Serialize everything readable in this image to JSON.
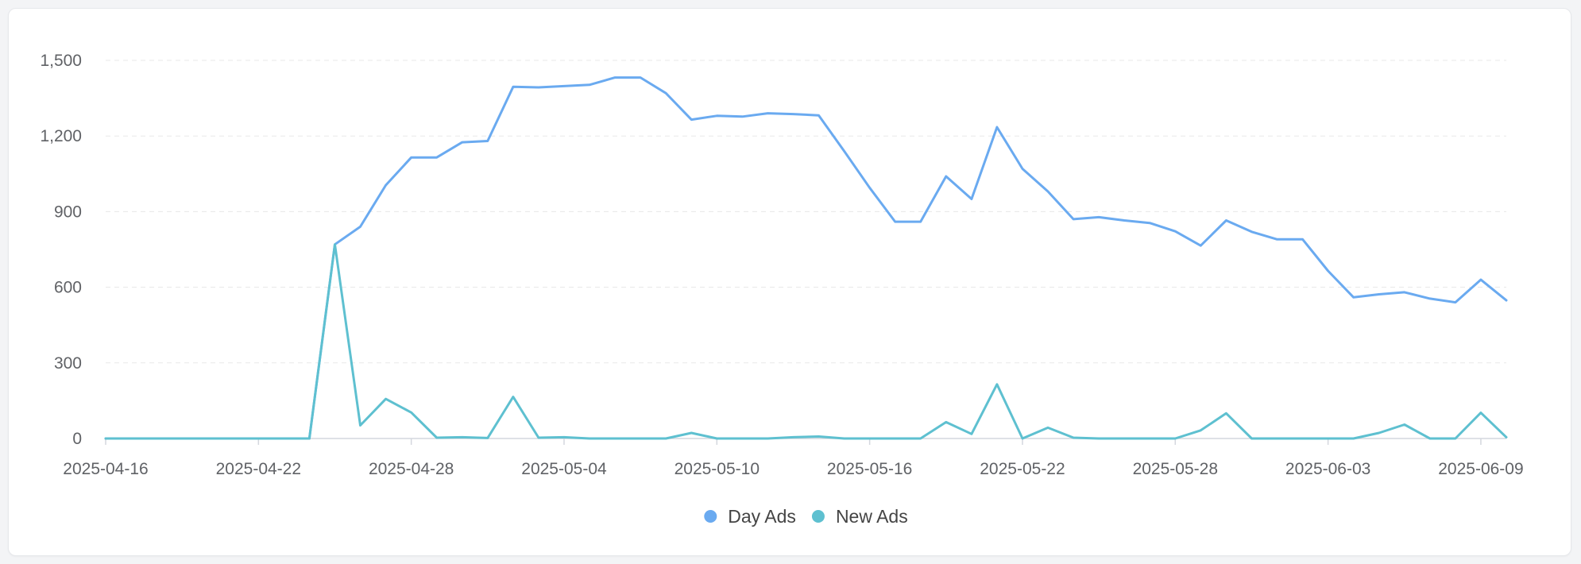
{
  "chart_data": {
    "type": "line",
    "title": "",
    "xlabel": "",
    "ylabel": "",
    "ylim": [
      0,
      1500
    ],
    "y_ticks": [
      "0",
      "300",
      "600",
      "900",
      "1,200",
      "1,500"
    ],
    "x_start": "2025-04-16",
    "x_end": "2025-06-10",
    "x_tick_labels": [
      "2025-04-16",
      "2025-04-22",
      "2025-04-28",
      "2025-05-04",
      "2025-05-10",
      "2025-05-16",
      "2025-05-22",
      "2025-05-28",
      "2025-06-03",
      "2025-06-09"
    ],
    "grid": "horizontal dashed",
    "legend_position": "bottom-center",
    "series": [
      {
        "name": "Day Ads",
        "color": "#6aaaf0",
        "values": [
          0,
          0,
          0,
          0,
          0,
          0,
          0,
          0,
          0,
          770,
          840,
          1005,
          1115,
          1115,
          1175,
          1180,
          1395,
          1393,
          1398,
          1403,
          1432,
          1432,
          1370,
          1265,
          1280,
          1277,
          1290,
          1287,
          1282,
          1140,
          995,
          860,
          860,
          1040,
          950,
          1235,
          1070,
          980,
          870,
          878,
          865,
          855,
          822,
          765,
          865,
          820,
          790,
          790,
          665,
          560,
          572,
          580,
          555,
          540,
          630,
          548
        ]
      },
      {
        "name": "New Ads",
        "color": "#5ec0d0",
        "values": [
          0,
          0,
          0,
          0,
          0,
          0,
          0,
          0,
          0,
          770,
          52,
          157,
          103,
          3,
          5,
          2,
          165,
          3,
          5,
          0,
          0,
          0,
          0,
          22,
          0,
          0,
          0,
          5,
          8,
          0,
          0,
          0,
          0,
          65,
          18,
          215,
          0,
          43,
          3,
          0,
          0,
          0,
          0,
          32,
          100,
          0,
          0,
          0,
          0,
          0,
          22,
          55,
          0,
          0,
          102,
          5
        ]
      }
    ]
  }
}
